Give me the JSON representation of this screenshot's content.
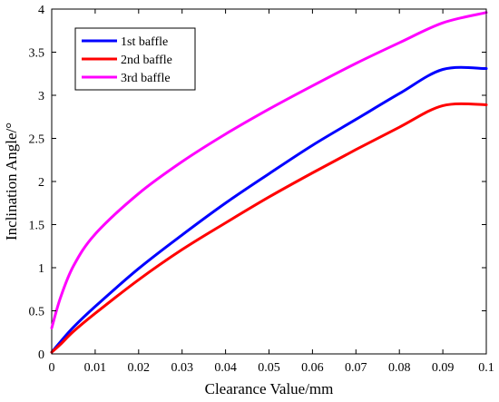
{
  "chart_data": {
    "type": "line",
    "title": "",
    "xlabel": "Clearance Value/mm",
    "ylabel": "Inclination Angle/°",
    "xlim": [
      0,
      0.1
    ],
    "ylim": [
      0,
      4
    ],
    "xticks": [
      "0",
      "0.01",
      "0.02",
      "0.03",
      "0.04",
      "0.05",
      "0.06",
      "0.07",
      "0.08",
      "0.09",
      "0.1"
    ],
    "yticks": [
      "0",
      "0.5",
      "1",
      "1.5",
      "2",
      "2.5",
      "3",
      "3.5",
      "4"
    ],
    "grid": false,
    "legend_position": "top-left",
    "x": [
      0,
      0.002,
      0.005,
      0.01,
      0.02,
      0.03,
      0.04,
      0.05,
      0.06,
      0.07,
      0.08,
      0.09,
      0.1
    ],
    "series": [
      {
        "name": "1st baffle",
        "color": "#0000ff",
        "values": [
          0.02,
          0.14,
          0.31,
          0.55,
          0.99,
          1.38,
          1.75,
          2.09,
          2.42,
          2.72,
          3.02,
          3.3,
          3.31
        ]
      },
      {
        "name": "2nd baffle",
        "color": "#ff0000",
        "values": [
          0.02,
          0.11,
          0.26,
          0.47,
          0.86,
          1.21,
          1.52,
          1.82,
          2.1,
          2.37,
          2.63,
          2.88,
          2.89
        ]
      },
      {
        "name": "3rd baffle",
        "color": "#ff00ff",
        "values": [
          0.3,
          0.65,
          1.02,
          1.39,
          1.86,
          2.23,
          2.55,
          2.84,
          3.11,
          3.37,
          3.61,
          3.84,
          3.96
        ]
      }
    ]
  }
}
